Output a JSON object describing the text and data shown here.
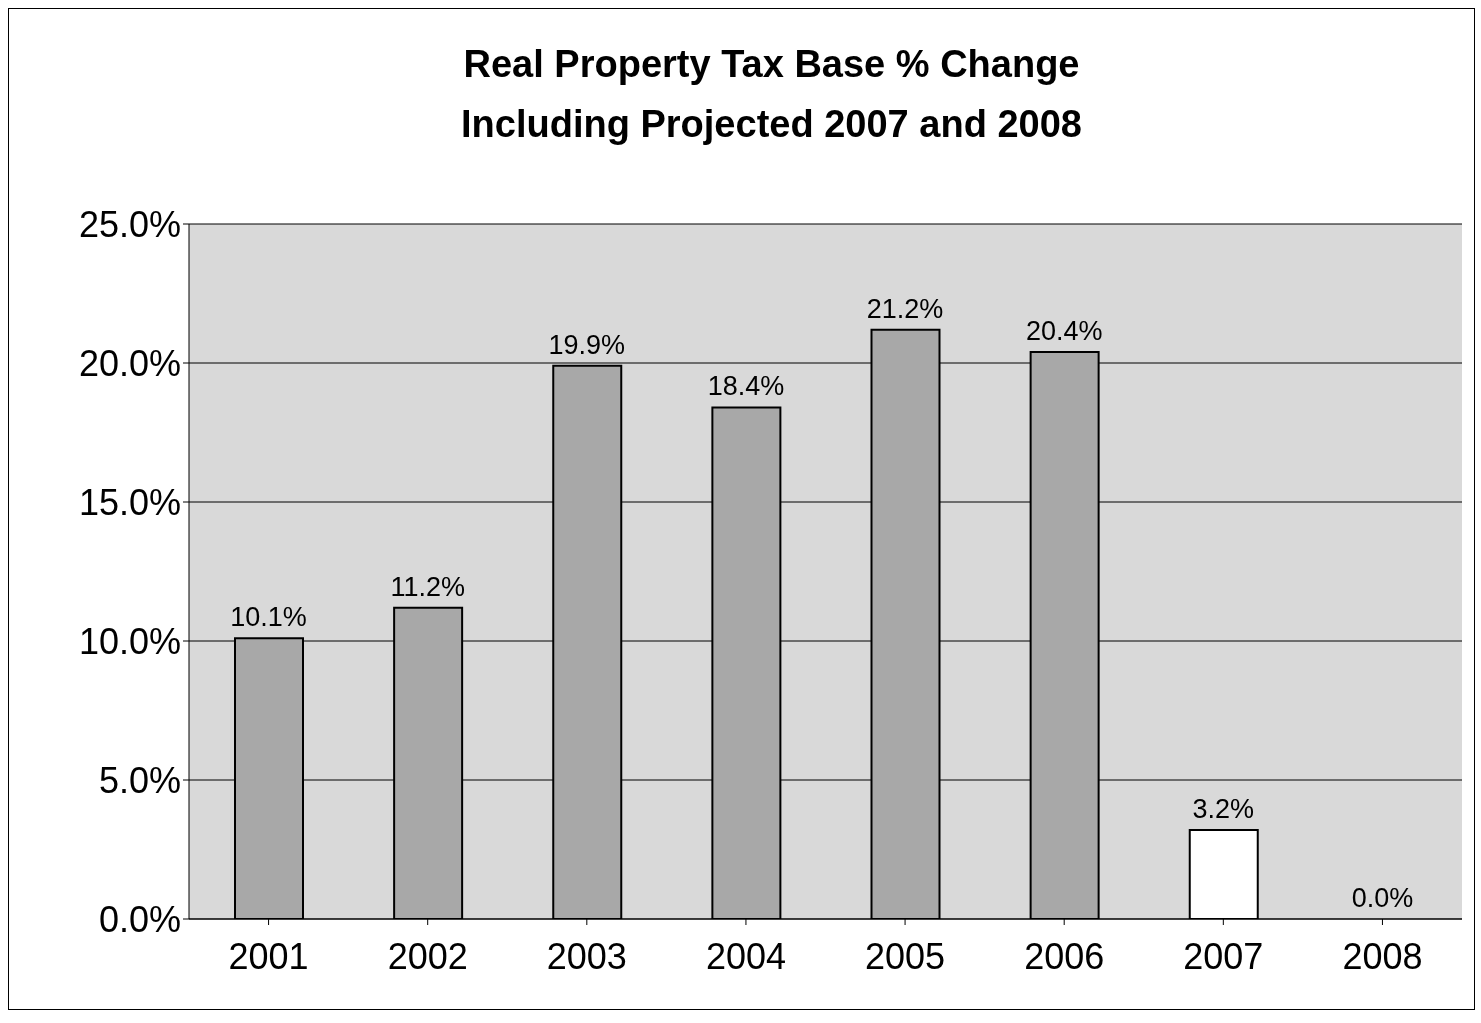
{
  "chart_data": {
    "type": "bar",
    "title": "Real Property Tax Base % Change\nIncluding Projected 2007 and 2008",
    "categories": [
      "2001",
      "2002",
      "2003",
      "2004",
      "2005",
      "2006",
      "2007",
      "2008"
    ],
    "values": [
      10.1,
      11.2,
      19.9,
      18.4,
      21.2,
      20.4,
      3.2,
      0.0
    ],
    "colors": [
      "#a8a8a8",
      "#a8a8a8",
      "#a8a8a8",
      "#a8a8a8",
      "#a8a8a8",
      "#a8a8a8",
      "#ffffff",
      "#ffffff"
    ],
    "value_labels": [
      "10.1%",
      "11.2%",
      "19.9%",
      "18.4%",
      "21.2%",
      "20.4%",
      "3.2%",
      "0.0%"
    ],
    "ylim": [
      0,
      25
    ],
    "yticks": [
      {
        "value": 0,
        "label": "0.0%"
      },
      {
        "value": 5,
        "label": "5.0%"
      },
      {
        "value": 10,
        "label": "10.0%"
      },
      {
        "value": 15,
        "label": "15.0%"
      },
      {
        "value": 20,
        "label": "20.0%"
      },
      {
        "value": 25,
        "label": "25.0%"
      }
    ],
    "grid": "y"
  }
}
